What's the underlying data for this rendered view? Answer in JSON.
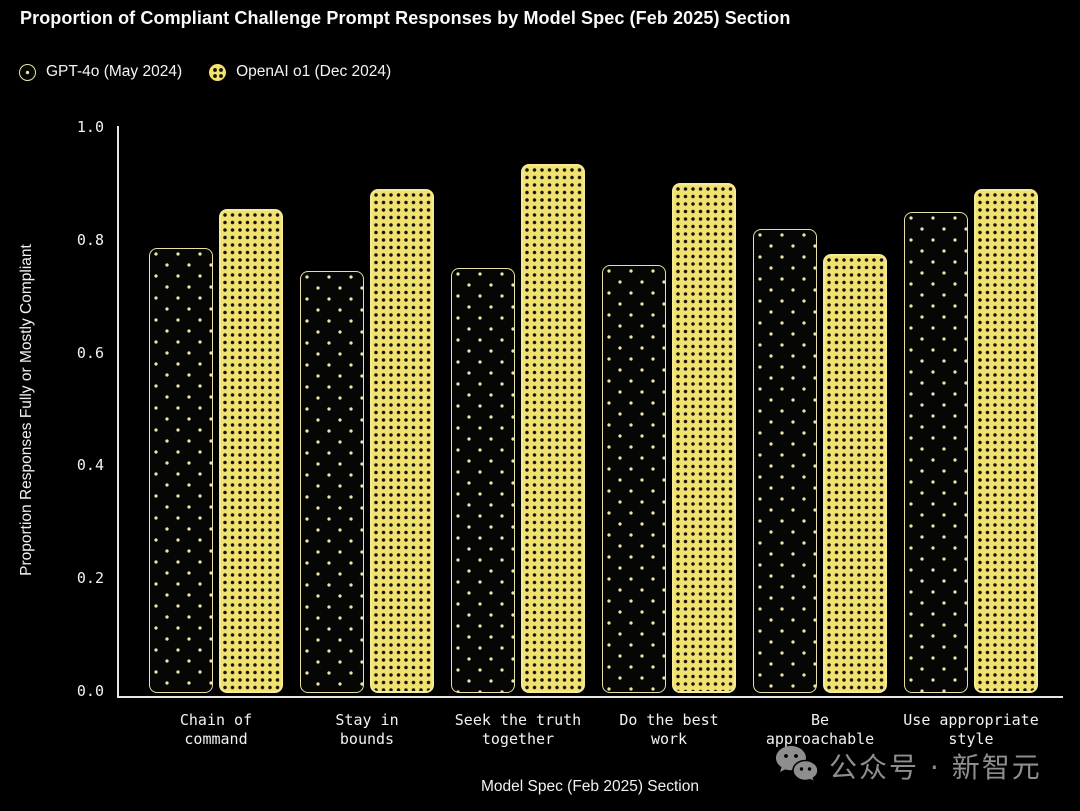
{
  "title": "Proportion of Compliant Challenge Prompt Responses by Model Spec (Feb 2025) Section",
  "legend": {
    "items": [
      {
        "label": "GPT-4o (May 2024)",
        "icon": "gpt4o-swatch-icon"
      },
      {
        "label": "OpenAI o1 (Dec 2024)",
        "icon": "o1-swatch-icon"
      }
    ]
  },
  "chart_data": {
    "type": "bar",
    "title": "Proportion of Compliant Challenge Prompt Responses by Model Spec (Feb 2025) Section",
    "categories": [
      "Chain of command",
      "Stay in bounds",
      "Seek the truth together",
      "Do the best work",
      "Be approachable",
      "Use appropriate style"
    ],
    "category_lines": [
      [
        "Chain of",
        "command"
      ],
      [
        "Stay in",
        "bounds"
      ],
      [
        "Seek the truth",
        "together"
      ],
      [
        "Do the best",
        "work"
      ],
      [
        "Be",
        "approachable"
      ],
      [
        "Use appropriate",
        "style"
      ]
    ],
    "series": [
      {
        "name": "GPT-4o (May 2024)",
        "values": [
          0.785,
          0.745,
          0.75,
          0.755,
          0.82,
          0.85
        ],
        "fill": "#060604",
        "dot_color": "#ece5ab",
        "border_color": "#e6dfa6"
      },
      {
        "name": "OpenAI o1 (Dec 2024)",
        "values": [
          0.855,
          0.89,
          0.935,
          0.9,
          0.775,
          0.89
        ],
        "fill": "#f1e170",
        "dot_color": "#17150b",
        "border_color": "#f5ea96"
      }
    ],
    "xlabel": "Model Spec (Feb 2025) Section",
    "ylabel": "Proportion Responses Fully or Mostly Compliant",
    "ylim": [
      0.0,
      1.0
    ],
    "ytick_values": [
      1.0,
      0.8,
      0.6,
      0.4,
      0.2,
      0.0
    ],
    "grid": false,
    "legend_position": "top-left",
    "background": "#000000"
  },
  "watermark": {
    "icon": "wechat-icon",
    "text": "公众号 · 新智元",
    "color": "#8e8e8e"
  }
}
